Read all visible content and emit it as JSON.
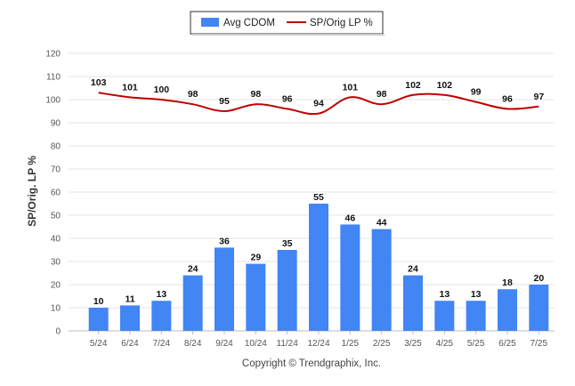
{
  "chart_data": {
    "type": "bar",
    "categories": [
      "5/24",
      "6/24",
      "7/24",
      "8/24",
      "9/24",
      "10/24",
      "11/24",
      "12/24",
      "1/25",
      "2/25",
      "3/25",
      "4/25",
      "5/25",
      "6/25",
      "7/25"
    ],
    "series": [
      {
        "name": "Avg CDOM",
        "type": "bar",
        "color": "#4285f4",
        "values": [
          10,
          11,
          13,
          24,
          36,
          29,
          35,
          55,
          46,
          44,
          24,
          13,
          13,
          18,
          20
        ]
      },
      {
        "name": "SP/Orig LP %",
        "type": "line",
        "color": "#c00000",
        "values": [
          103,
          101,
          100,
          98,
          95,
          98,
          96,
          94,
          101,
          98,
          102,
          102,
          99,
          96,
          97
        ]
      }
    ],
    "ylabel": "SP/Orig. LP %",
    "ylim": [
      0,
      120
    ],
    "yticks": [
      0,
      10,
      20,
      30,
      40,
      50,
      60,
      70,
      80,
      90,
      100,
      110,
      120
    ],
    "grid": true,
    "legend_position": "top-center"
  },
  "footer": {
    "copyright": "Copyright © Trendgraphix, Inc."
  },
  "colors": {
    "grid": "#e6e6e6",
    "axis": "#bbbbbb",
    "bar": "#4285f4",
    "line": "#c00000"
  }
}
